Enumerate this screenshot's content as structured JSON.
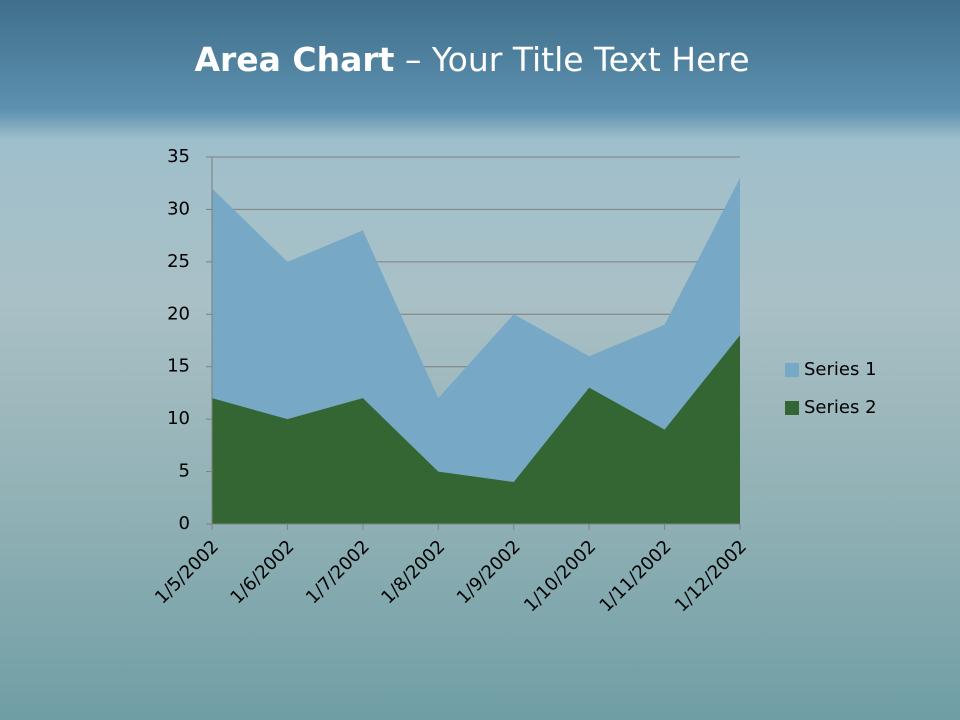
{
  "slide": {
    "title_bold": "Area Chart",
    "title_rest": "– Your Title Text Here"
  },
  "chart_data": {
    "type": "area",
    "categories": [
      "1/5/2002",
      "1/6/2002",
      "1/7/2002",
      "1/8/2002",
      "1/9/2002",
      "1/10/2002",
      "1/11/2002",
      "1/12/2002"
    ],
    "series": [
      {
        "name": "Series 1",
        "color": "#77a9c6",
        "values": [
          32,
          25,
          28,
          12,
          20,
          16,
          19,
          33
        ]
      },
      {
        "name": "Series 2",
        "color": "#336633",
        "values": [
          12,
          10,
          12,
          5,
          4,
          13,
          9,
          18
        ]
      }
    ],
    "ylim": [
      0,
      35
    ],
    "yticks": [
      0,
      5,
      10,
      15,
      20,
      25,
      30,
      35
    ],
    "grid": true,
    "legend": "right"
  }
}
